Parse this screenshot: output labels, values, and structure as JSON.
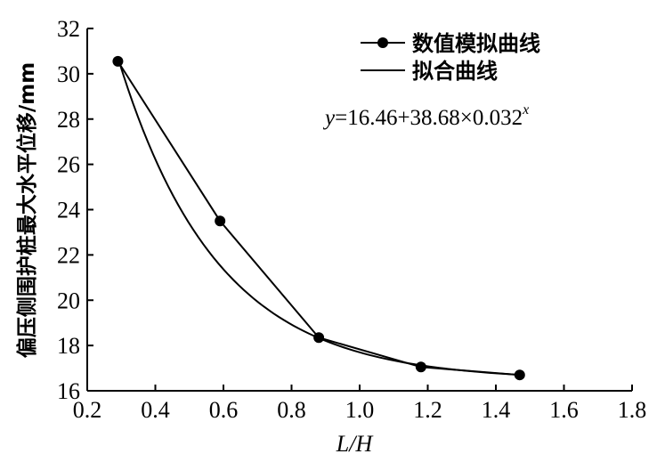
{
  "chart_data": {
    "type": "line",
    "xlabel": "L/H",
    "ylabel": "偏压侧围护桩最大水平位移/mm",
    "xlim": [
      0.2,
      1.8
    ],
    "ylim": [
      16,
      32
    ],
    "x_ticks": [
      "0.2",
      "0.4",
      "0.6",
      "0.8",
      "1.0",
      "1.2",
      "1.4",
      "1.6",
      "1.8"
    ],
    "y_ticks": [
      "16",
      "18",
      "20",
      "22",
      "24",
      "26",
      "28",
      "30",
      "32"
    ],
    "legend_position": "top-right",
    "series": [
      {
        "name": "数值模拟曲线",
        "style": "line-with-markers",
        "x": [
          0.29,
          0.59,
          0.88,
          1.18,
          1.47
        ],
        "y": [
          30.55,
          23.5,
          18.35,
          17.05,
          16.7
        ]
      },
      {
        "name": "拟合曲线",
        "style": "line",
        "equation": "y=16.46+38.68×0.032^x",
        "function": {
          "a": 16.46,
          "b": 38.68,
          "c": 0.032
        },
        "x_range": [
          0.29,
          1.47
        ]
      }
    ],
    "annotation": {
      "text_prefix": "y",
      "text_main": "=16.46+38.68×0.032",
      "text_exp": "x"
    },
    "colors": {
      "line": "#000000",
      "marker": "#000000"
    }
  }
}
